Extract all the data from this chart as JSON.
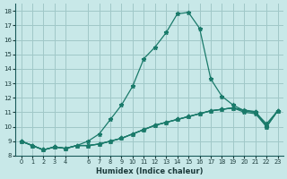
{
  "xlabel": "Humidex (Indice chaleur)",
  "background_color": "#c8e8e8",
  "grid_color": "#a0c8c8",
  "line_color": "#1a7a6a",
  "xlim": [
    -0.5,
    23.5
  ],
  "ylim": [
    8,
    18.5
  ],
  "xticks": [
    0,
    1,
    2,
    3,
    4,
    6,
    7,
    8,
    9,
    10,
    11,
    12,
    13,
    14,
    15,
    16,
    17,
    18,
    19,
    20,
    21,
    22,
    23
  ],
  "yticks": [
    8,
    9,
    10,
    11,
    12,
    13,
    14,
    15,
    16,
    17,
    18
  ],
  "x_values": [
    0,
    1,
    2,
    3,
    4,
    5,
    6,
    7,
    8,
    9,
    10,
    11,
    12,
    13,
    14,
    15,
    16,
    17,
    18,
    19,
    20,
    21,
    22,
    23
  ],
  "series_main": [
    9.0,
    8.7,
    8.4,
    8.6,
    8.5,
    8.7,
    9.0,
    9.5,
    10.5,
    11.5,
    12.8,
    14.7,
    15.5,
    16.5,
    17.8,
    17.9,
    16.8,
    13.3,
    12.1,
    11.5,
    11.1,
    11.0,
    10.2,
    11.1
  ],
  "series_flat1": [
    9.0,
    8.7,
    8.4,
    8.6,
    8.5,
    8.7,
    8.7,
    8.8,
    9.0,
    9.2,
    9.5,
    9.8,
    10.1,
    10.3,
    10.5,
    10.7,
    10.9,
    11.1,
    11.2,
    11.3,
    11.0,
    10.9,
    10.0,
    11.1
  ],
  "series_flat2": [
    9.0,
    8.7,
    8.4,
    8.6,
    8.5,
    8.7,
    8.7,
    8.8,
    9.0,
    9.2,
    9.5,
    9.8,
    10.1,
    10.3,
    10.5,
    10.7,
    10.9,
    11.1,
    11.2,
    11.3,
    11.1,
    11.0,
    10.0,
    11.1
  ],
  "series_flat3": [
    9.0,
    8.7,
    8.4,
    8.6,
    8.5,
    8.7,
    8.7,
    8.8,
    9.0,
    9.2,
    9.5,
    9.8,
    10.1,
    10.3,
    10.5,
    10.7,
    10.9,
    11.1,
    11.2,
    11.3,
    11.15,
    11.05,
    10.05,
    11.1
  ]
}
